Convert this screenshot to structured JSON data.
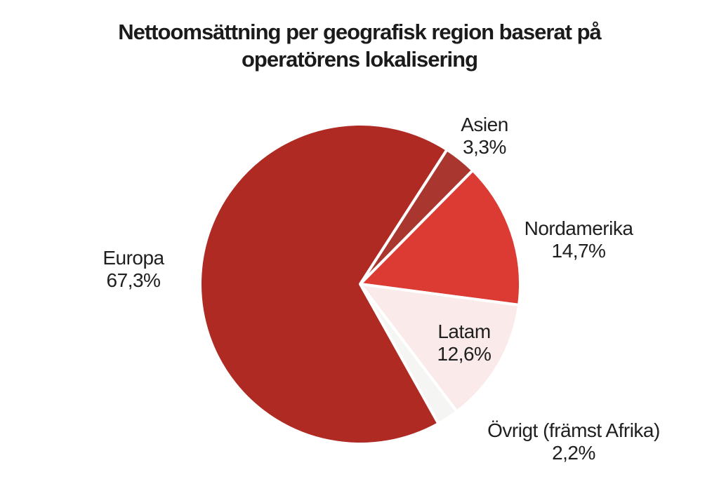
{
  "page": {
    "background_color": "#FFFFFF",
    "text_color": "#1F1F1F"
  },
  "chart_data": {
    "type": "pie",
    "title": "Nettoomsättning per geografisk region baserat på operatörens lokalisering",
    "title_lines": [
      "Nettoomsättning per geografisk region baserat på",
      "operatörens lokalisering"
    ],
    "legend": "none",
    "units": "percent",
    "start_angle_clockwise_from_top_deg": 32.8,
    "slices": [
      {
        "id": "asien",
        "label": "Asien",
        "value": 3.3,
        "display": "3,3%",
        "color": "#A9362F"
      },
      {
        "id": "nordamerika",
        "label": "Nordamerika",
        "value": 14.7,
        "display": "14,7%",
        "color": "#DC3B33"
      },
      {
        "id": "latam",
        "label": "Latam",
        "value": 12.6,
        "display": "12,6%",
        "color": "#FAEBEA"
      },
      {
        "id": "ovrigt",
        "label": "Övrigt (främst Afrika)",
        "value": 2.2,
        "display": "2,2%",
        "color": "#F5F5F3"
      },
      {
        "id": "europa",
        "label": "Europa",
        "value": 67.3,
        "display": "67,3%",
        "color": "#AF2A23"
      }
    ],
    "slice_separator_color": "#FFFFFF"
  }
}
